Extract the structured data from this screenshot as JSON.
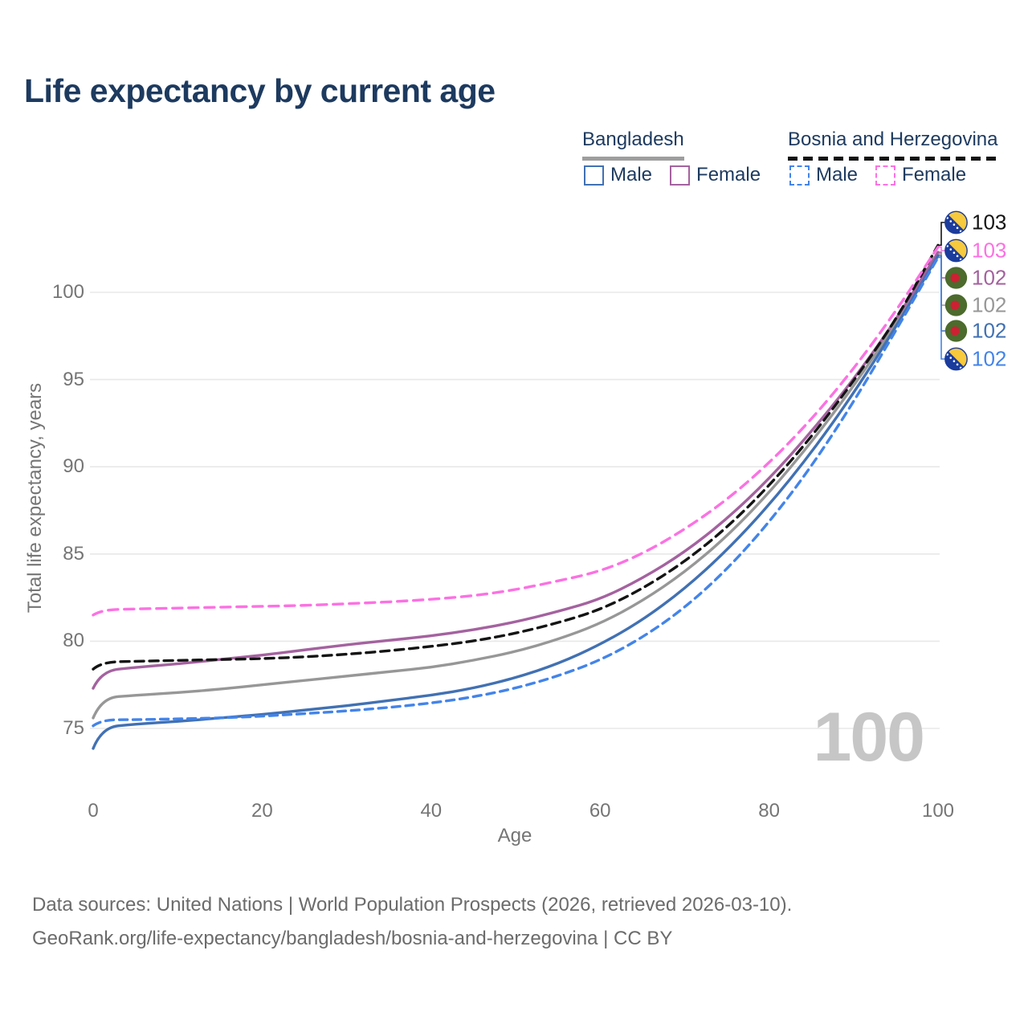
{
  "title": "Life expectancy by current age",
  "legend": {
    "groups": [
      {
        "name": "Bangladesh",
        "underline_style": "solid",
        "underline_color": "#9e9e9e",
        "items": [
          {
            "label": "Male",
            "color": "#4171b3",
            "dashed": false
          },
          {
            "label": "Female",
            "color": "#a4629f",
            "dashed": false
          }
        ]
      },
      {
        "name": "Bosnia and Herzegovina",
        "underline_style": "dashed",
        "underline_color": "#141414",
        "items": [
          {
            "label": "Male",
            "color": "#4384ea",
            "dashed": true
          },
          {
            "label": "Female",
            "color": "#fc71e2",
            "dashed": true
          }
        ]
      }
    ]
  },
  "chart_data": {
    "type": "line",
    "title": "Life expectancy by current age",
    "xlabel": "Age",
    "ylabel": "Total life expectancy, years",
    "x_ticks": [
      0,
      20,
      40,
      60,
      80,
      100
    ],
    "y_ticks": [
      75,
      80,
      85,
      90,
      95,
      100
    ],
    "xlim": [
      0,
      100
    ],
    "ylim": [
      73.5,
      103.5
    ],
    "grid": "horizontal",
    "legend_position": "top-right",
    "ages": [
      0,
      1,
      5,
      10,
      15,
      20,
      25,
      30,
      35,
      40,
      45,
      50,
      55,
      60,
      65,
      70,
      75,
      80,
      85,
      90,
      95,
      100
    ],
    "series": [
      {
        "name": "Bangladesh Total",
        "country": "Bangladesh",
        "sex": "Total",
        "color": "#979797",
        "dash": null,
        "values": [
          75.6,
          76.75,
          76.9,
          77.05,
          77.25,
          77.5,
          77.75,
          78.0,
          78.25,
          78.5,
          78.9,
          79.4,
          80.1,
          81.0,
          82.3,
          83.95,
          86.0,
          88.5,
          91.4,
          94.6,
          98.2,
          102.2
        ]
      },
      {
        "name": "Bangladesh Female",
        "country": "Bangladesh",
        "sex": "Female",
        "color": "#a4629f",
        "dash": null,
        "values": [
          77.3,
          78.3,
          78.5,
          78.7,
          78.95,
          79.2,
          79.5,
          79.8,
          80.05,
          80.3,
          80.65,
          81.1,
          81.7,
          82.4,
          83.6,
          85.1,
          87.0,
          89.3,
          92.0,
          95.0,
          98.4,
          102.3
        ]
      },
      {
        "name": "Bangladesh Male",
        "country": "Bangladesh",
        "sex": "Male",
        "color": "#4171b3",
        "dash": null,
        "values": [
          73.85,
          75.05,
          75.25,
          75.4,
          75.6,
          75.8,
          76.05,
          76.3,
          76.6,
          76.9,
          77.3,
          77.9,
          78.7,
          79.8,
          81.2,
          83.0,
          85.2,
          87.8,
          90.8,
          94.2,
          98.0,
          102.1
        ]
      },
      {
        "name": "Bosnia and Herzegovina Total",
        "country": "Bosnia and Herzegovina",
        "sex": "Total",
        "color": "#141414",
        "dash": "11 7",
        "values": [
          78.4,
          78.8,
          78.85,
          78.9,
          78.95,
          79.0,
          79.1,
          79.25,
          79.45,
          79.7,
          80.0,
          80.45,
          81.05,
          81.8,
          83.0,
          84.55,
          86.5,
          88.9,
          91.7,
          94.9,
          98.4,
          102.7
        ]
      },
      {
        "name": "Bosnia and Herzegovina Female",
        "country": "Bosnia and Herzegovina",
        "sex": "Female",
        "color": "#fc71e2",
        "dash": "12 8",
        "values": [
          81.5,
          81.8,
          81.85,
          81.9,
          81.95,
          82.0,
          82.05,
          82.15,
          82.25,
          82.4,
          82.6,
          82.95,
          83.45,
          84.0,
          85.0,
          86.4,
          88.1,
          90.2,
          92.7,
          95.6,
          98.9,
          102.6
        ]
      },
      {
        "name": "Bosnia and Herzegovina Male",
        "country": "Bosnia and Herzegovina",
        "sex": "Male",
        "color": "#4384ea",
        "dash": "10 7",
        "values": [
          75.15,
          75.5,
          75.5,
          75.55,
          75.6,
          75.7,
          75.85,
          76.0,
          76.2,
          76.45,
          76.8,
          77.3,
          78.0,
          78.9,
          80.2,
          81.9,
          84.1,
          86.8,
          90.0,
          93.7,
          97.8,
          102.0
        ]
      }
    ],
    "end_labels": [
      {
        "text": "103",
        "color": "#141414",
        "flag": "bosnia",
        "series": "Bosnia and Herzegovina Total"
      },
      {
        "text": "103",
        "color": "#fc71e2",
        "flag": "bosnia",
        "series": "Bosnia and Herzegovina Female"
      },
      {
        "text": "102",
        "color": "#a4629f",
        "flag": "bangladesh",
        "series": "Bangladesh Female"
      },
      {
        "text": "102",
        "color": "#979797",
        "flag": "bangladesh",
        "series": "Bangladesh Total"
      },
      {
        "text": "102",
        "color": "#4171b3",
        "flag": "bangladesh",
        "series": "Bangladesh Male"
      },
      {
        "text": "102",
        "color": "#4384ea",
        "flag": "bosnia",
        "series": "Bosnia and Herzegovina Male"
      }
    ],
    "watermark": "100"
  },
  "colors": {
    "title_text": "#1d3a5f",
    "axis_text": "#757575",
    "gridline": "#e8e8e8",
    "watermark": "#c6c6c6",
    "footer_text": "#6b6b6b",
    "flag_bosnia_blue": "#1b3c9c",
    "flag_bosnia_yellow": "#f7c93c",
    "flag_bangladesh_green": "#4c6b2c",
    "flag_bangladesh_red": "#cc2132"
  },
  "footer": {
    "line1": "Data sources: United Nations | World Population Prospects (2026, retrieved 2026-03-10).",
    "line2": "GeoRank.org/life-expectancy/bangladesh/bosnia-and-herzegovina | CC BY"
  }
}
